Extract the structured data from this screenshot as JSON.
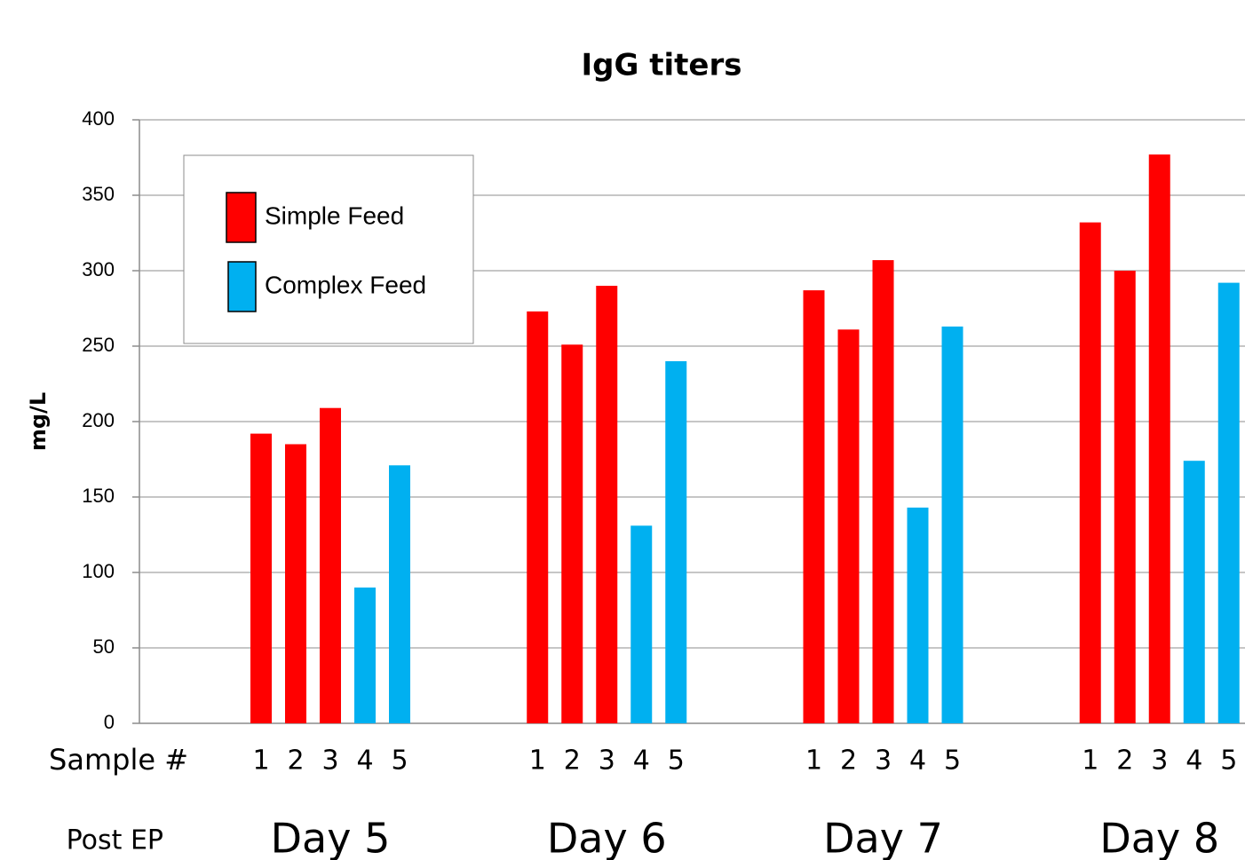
{
  "chart_data": {
    "type": "grouped-bar",
    "title": "IgG titers",
    "y_label": "mg/L",
    "x_label": "Sample #",
    "group_label": "Post EP",
    "groups": [
      "Day 5",
      "Day 6",
      "Day 7",
      "Day 8"
    ],
    "categories": [
      "1",
      "2",
      "3",
      "4",
      "5"
    ],
    "series": [
      {
        "name": "Simple Feed",
        "color": "#ff0000",
        "values": [
          [
            192,
            185,
            209,
            null,
            null
          ],
          [
            273,
            251,
            290,
            null,
            null
          ],
          [
            287,
            261,
            307,
            null,
            null
          ],
          [
            332,
            300,
            377,
            null,
            null
          ]
        ]
      },
      {
        "name": "Complex Feed",
        "color": "#00b0f0",
        "values": [
          [
            null,
            null,
            null,
            90,
            171
          ],
          [
            null,
            null,
            null,
            131,
            240
          ],
          [
            null,
            null,
            null,
            143,
            263
          ],
          [
            null,
            null,
            null,
            174,
            292
          ]
        ]
      }
    ],
    "ylim": [
      0,
      400
    ],
    "yticks": [
      0,
      50,
      100,
      150,
      200,
      250,
      300,
      350,
      400
    ],
    "grid": true,
    "legend": "top-left"
  }
}
